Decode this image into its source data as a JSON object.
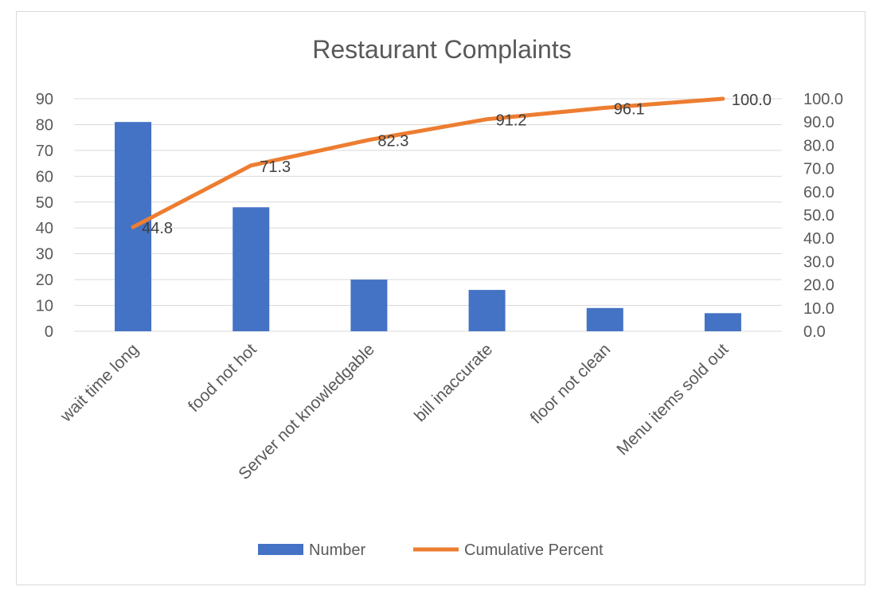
{
  "chart_data": {
    "type": "bar",
    "title": "Restaurant Complaints",
    "categories": [
      "wait time long",
      "food not hot",
      "Server not knowledgable",
      "bill inaccurate",
      "floor not clean",
      "Menu items sold out"
    ],
    "series": [
      {
        "name": "Number",
        "type": "bar",
        "axis": "left",
        "color": "#4472C4",
        "values": [
          81,
          48,
          20,
          16,
          9,
          7
        ]
      },
      {
        "name": "Cumulative Percent",
        "type": "line",
        "axis": "right",
        "color": "#ED7D31",
        "values": [
          44.8,
          71.3,
          82.3,
          91.2,
          96.1,
          100.0
        ],
        "data_labels": [
          "44.8",
          "71.3",
          "82.3",
          "91.2",
          "96.1",
          "100.0"
        ]
      }
    ],
    "y_left": {
      "min": 0,
      "max": 90,
      "step": 10,
      "tick_labels": [
        "0",
        "10",
        "20",
        "30",
        "40",
        "50",
        "60",
        "70",
        "80",
        "90"
      ]
    },
    "y_right": {
      "min": 0,
      "max": 100,
      "step": 10,
      "tick_labels": [
        "0.0",
        "10.0",
        "20.0",
        "30.0",
        "40.0",
        "50.0",
        "60.0",
        "70.0",
        "80.0",
        "90.0",
        "100.0"
      ]
    },
    "grid": true,
    "legend_position": "bottom"
  }
}
